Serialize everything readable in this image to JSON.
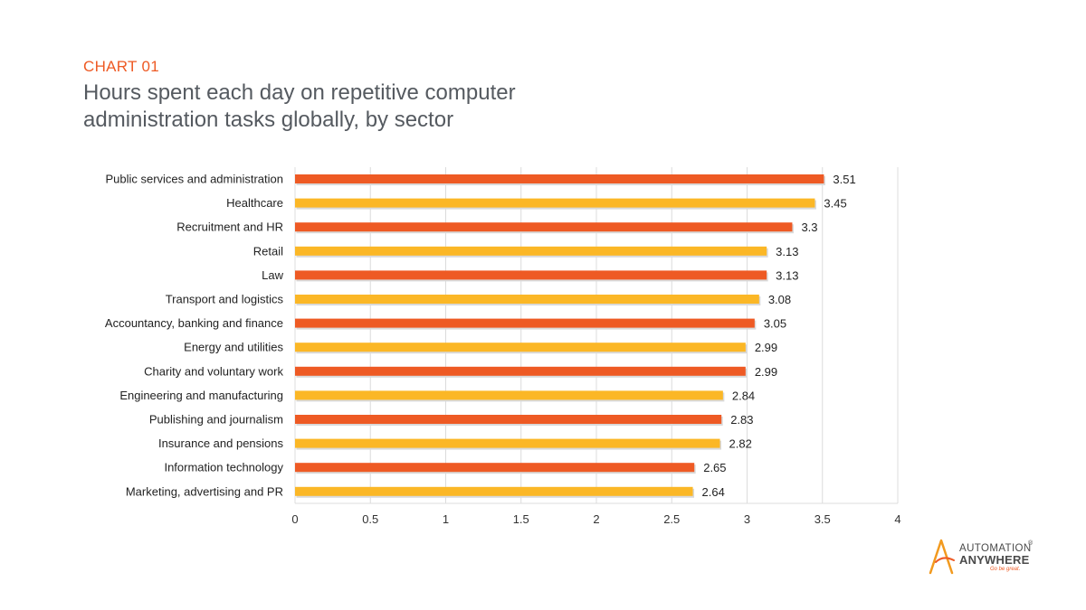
{
  "header": {
    "chart_label": "CHART 01",
    "title": "Hours spent each day on repetitive computer administration tasks globally, by sector"
  },
  "logo": {
    "line1": "AUTOMATION",
    "line2": "ANYWHERE",
    "tagline": "Go be great.",
    "registered": "®"
  },
  "colors": {
    "accent_orange": "#ee5a24",
    "accent_yellow": "#fbb726",
    "title_gray": "#555a60"
  },
  "chart_data": {
    "type": "bar",
    "orientation": "horizontal",
    "title": "Hours spent each day on repetitive computer administration tasks globally, by sector",
    "xlabel": "",
    "ylabel": "",
    "xlim": [
      0,
      4
    ],
    "ticks": [
      "0",
      "0.5",
      "1",
      "1.5",
      "2",
      "2.5",
      "3",
      "3.5",
      "4"
    ],
    "grid": "vertical",
    "legend": "none",
    "bar_colors_alternating": [
      "#ee5a24",
      "#fbb726"
    ],
    "categories": [
      "Public services and administration",
      "Healthcare",
      "Recruitment and HR",
      "Retail",
      "Law",
      "Transport and logistics",
      "Accountancy, banking and finance",
      "Energy and utilities",
      "Charity and voluntary work",
      "Engineering and manufacturing",
      "Publishing and journalism",
      "Insurance and pensions",
      "Information technology",
      "Marketing, advertising and PR"
    ],
    "values": [
      3.51,
      3.45,
      3.3,
      3.13,
      3.13,
      3.08,
      3.05,
      2.99,
      2.99,
      2.84,
      2.83,
      2.82,
      2.65,
      2.64
    ],
    "value_labels": [
      "3.51",
      "3.45",
      "3.3",
      "3.13",
      "3.13",
      "3.08",
      "3.05",
      "2.99",
      "2.99",
      "2.84",
      "2.83",
      "2.82",
      "2.65",
      "2.64"
    ]
  }
}
